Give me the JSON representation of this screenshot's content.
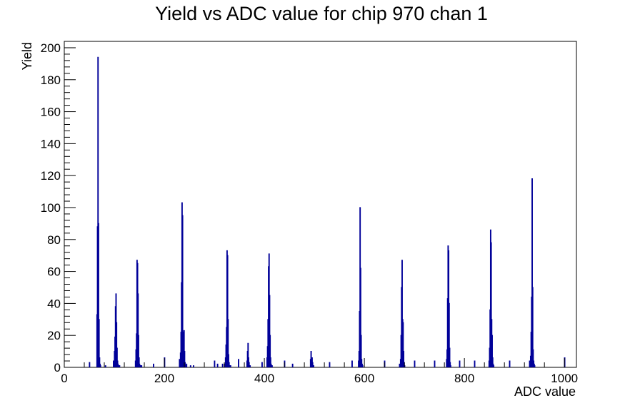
{
  "chart_data": {
    "type": "bar",
    "title": "Yield vs ADC value for chip 970 chan 1",
    "xlabel": "ADC value",
    "ylabel": "Yield",
    "xlim": [
      0,
      1024
    ],
    "ylim": [
      0,
      204
    ],
    "x_ticks": [
      0,
      200,
      400,
      600,
      800,
      1000
    ],
    "y_ticks": [
      0,
      20,
      40,
      60,
      80,
      100,
      120,
      140,
      160,
      180,
      200
    ],
    "grid": false,
    "legend": "none",
    "line_color": "#000099",
    "series": [
      {
        "x": [
          50,
          65,
          66,
          67,
          68,
          69,
          70,
          71,
          72,
          82,
          98,
          100,
          101,
          102,
          103,
          104,
          105,
          106,
          107,
          108,
          109,
          110,
          142,
          143,
          144,
          145,
          146,
          147,
          148,
          149,
          150,
          151,
          152,
          153,
          154,
          178,
          200,
          230,
          232,
          233,
          234,
          235,
          236,
          237,
          238,
          239,
          240,
          241,
          242,
          243,
          244,
          252,
          258,
          300,
          306,
          316,
          320,
          322,
          323,
          324,
          325,
          326,
          327,
          328,
          329,
          330,
          331,
          332,
          348,
          365,
          366,
          367,
          368,
          369,
          370,
          371,
          395,
          405,
          406,
          407,
          408,
          409,
          410,
          411,
          412,
          413,
          414,
          415,
          440,
          456,
          492,
          493,
          494,
          495,
          496,
          497,
          498,
          530,
          575,
          588,
          589,
          590,
          591,
          592,
          593,
          594,
          595,
          596,
          640,
          670,
          672,
          673,
          674,
          675,
          676,
          677,
          678,
          679,
          680,
          700,
          740,
          764,
          765,
          766,
          767,
          768,
          769,
          770,
          771,
          772,
          790,
          820,
          849,
          850,
          851,
          852,
          853,
          854,
          855,
          856,
          857,
          858,
          890,
          930,
          932,
          933,
          934,
          935,
          936,
          937,
          938,
          939,
          940,
          1000
        ],
        "values": [
          3,
          33,
          88,
          194,
          90,
          30,
          6,
          2,
          1,
          1,
          4,
          10,
          19,
          38,
          46,
          28,
          12,
          4,
          2,
          1,
          1,
          1,
          4,
          11,
          21,
          67,
          65,
          46,
          20,
          6,
          2,
          1,
          1,
          1,
          1,
          2,
          6,
          5,
          9,
          22,
          53,
          103,
          95,
          22,
          17,
          23,
          10,
          3,
          1,
          1,
          2,
          1,
          1,
          4,
          2,
          2,
          2,
          6,
          14,
          25,
          73,
          70,
          30,
          8,
          3,
          1,
          1,
          1,
          5,
          4,
          10,
          15,
          6,
          3,
          1,
          1,
          3,
          6,
          13,
          30,
          63,
          71,
          45,
          20,
          6,
          2,
          1,
          1,
          4,
          2,
          5,
          10,
          6,
          6,
          3,
          1,
          1,
          3,
          4,
          4,
          10,
          35,
          100,
          62,
          20,
          5,
          2,
          1,
          4,
          2,
          5,
          20,
          50,
          67,
          30,
          28,
          10,
          3,
          1,
          4,
          4,
          5,
          11,
          43,
          76,
          73,
          40,
          12,
          3,
          1,
          4,
          4,
          4,
          12,
          36,
          86,
          78,
          30,
          20,
          6,
          2,
          1,
          4,
          4,
          7,
          22,
          44,
          118,
          50,
          11,
          4,
          2,
          1,
          6
        ]
      }
    ]
  }
}
